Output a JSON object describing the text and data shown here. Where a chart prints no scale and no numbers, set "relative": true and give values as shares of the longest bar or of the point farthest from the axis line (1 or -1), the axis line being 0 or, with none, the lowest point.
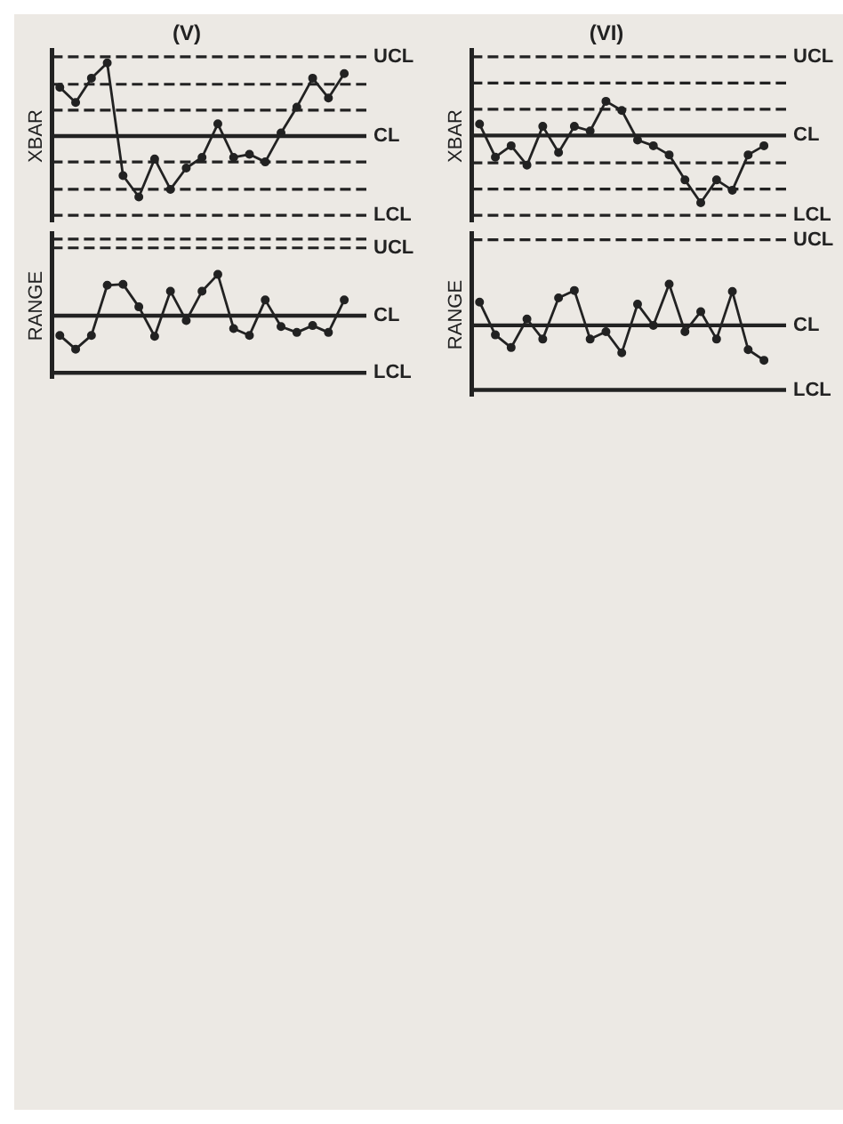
{
  "chart_data": [
    {
      "type": "line",
      "title": "(V)",
      "ylabel": "XBAR",
      "relative": true,
      "categories": [
        null,
        null,
        null,
        null,
        null,
        null,
        null,
        null,
        null,
        null,
        null,
        null,
        null,
        null,
        null,
        null,
        null,
        null,
        null
      ],
      "series": [
        {
          "color": "#222222",
          "values": [
            0.84,
            0.74,
            0.9,
            1.0,
            0.26,
            0.12,
            0.37,
            0.17,
            0.31,
            0.38,
            0.6,
            0.38,
            0.4,
            0.35,
            0.54,
            0.71,
            0.9,
            0.77,
            0.93
          ]
        }
      ],
      "ref_lines": [
        {
          "axis": "y",
          "value": 1.04,
          "label": "UCL",
          "line_style": "dashed",
          "color": "#222222"
        },
        {
          "axis": "y",
          "value": 0.86,
          "line_style": "dashed",
          "color": "#222222"
        },
        {
          "axis": "y",
          "value": 0.69,
          "line_style": "dashed",
          "color": "#222222"
        },
        {
          "axis": "y",
          "value": 0.52,
          "label": "CL",
          "line_style": "solid",
          "color": "#222222"
        },
        {
          "axis": "y",
          "value": 0.35,
          "line_style": "dashed",
          "color": "#222222"
        },
        {
          "axis": "y",
          "value": 0.17,
          "line_style": "dashed",
          "color": "#222222"
        },
        {
          "axis": "y",
          "value": 0,
          "label": "LCL",
          "line_style": "dashed",
          "color": "#222222"
        }
      ],
      "marker": "circle",
      "grid": false,
      "legend": false
    },
    {
      "type": "line",
      "title": "(VI)",
      "ylabel": "XBAR",
      "relative": true,
      "categories": [
        null,
        null,
        null,
        null,
        null,
        null,
        null,
        null,
        null,
        null,
        null,
        null,
        null,
        null,
        null,
        null,
        null,
        null,
        null
      ],
      "series": [
        {
          "color": "#222222",
          "values": [
            0.8,
            0.51,
            0.61,
            0.44,
            0.78,
            0.55,
            0.78,
            0.74,
            1.0,
            0.92,
            0.66,
            0.61,
            0.53,
            0.31,
            0.11,
            0.31,
            0.22,
            0.53,
            0.61
          ]
        }
      ],
      "ref_lines": [
        {
          "axis": "y",
          "value": 1.39,
          "label": "UCL",
          "line_style": "dashed",
          "color": "#222222"
        },
        {
          "axis": "y",
          "value": 1.16,
          "line_style": "dashed",
          "color": "#222222"
        },
        {
          "axis": "y",
          "value": 0.93,
          "line_style": "dashed",
          "color": "#222222"
        },
        {
          "axis": "y",
          "value": 0.7,
          "label": "CL",
          "line_style": "solid",
          "color": "#222222"
        },
        {
          "axis": "y",
          "value": 0.46,
          "line_style": "dashed",
          "color": "#222222"
        },
        {
          "axis": "y",
          "value": 0.23,
          "line_style": "dashed",
          "color": "#222222"
        },
        {
          "axis": "y",
          "value": 0,
          "label": "LCL",
          "line_style": "dashed",
          "color": "#222222"
        }
      ],
      "marker": "circle",
      "grid": false,
      "legend": false
    },
    {
      "type": "line",
      "ylabel": "RANGE",
      "relative": true,
      "categories": [
        null,
        null,
        null,
        null,
        null,
        null,
        null,
        null,
        null,
        null,
        null,
        null,
        null,
        null,
        null,
        null,
        null,
        null,
        null
      ],
      "series": [
        {
          "color": "#222222",
          "values": [
            0.38,
            0.24,
            0.38,
            0.89,
            0.9,
            0.67,
            0.37,
            0.83,
            0.53,
            0.83,
            1.0,
            0.45,
            0.38,
            0.74,
            0.47,
            0.41,
            0.48,
            0.41,
            0.74
          ]
        }
      ],
      "ref_lines": [
        {
          "axis": "y",
          "value": 1.36,
          "line_style": "dashed",
          "color": "#222222"
        },
        {
          "axis": "y",
          "value": 1.27,
          "label": "UCL",
          "line_style": "dashed",
          "color": "#222222"
        },
        {
          "axis": "y",
          "value": 0.58,
          "label": "CL",
          "line_style": "solid",
          "color": "#222222"
        },
        {
          "axis": "y",
          "value": 0,
          "label": "LCL",
          "line_style": "solid",
          "color": "#222222"
        }
      ],
      "marker": "circle",
      "grid": false,
      "legend": false
    },
    {
      "type": "line",
      "ylabel": "RANGE",
      "relative": true,
      "categories": [
        null,
        null,
        null,
        null,
        null,
        null,
        null,
        null,
        null,
        null,
        null,
        null,
        null,
        null,
        null,
        null,
        null,
        null,
        null
      ],
      "series": [
        {
          "color": "#222222",
          "values": [
            0.83,
            0.52,
            0.4,
            0.67,
            0.48,
            0.87,
            0.94,
            0.48,
            0.55,
            0.35,
            0.81,
            0.61,
            1.0,
            0.55,
            0.74,
            0.48,
            0.93,
            0.38,
            0.28
          ]
        }
      ],
      "ref_lines": [
        {
          "axis": "y",
          "value": 1.42,
          "label": "UCL",
          "line_style": "dashed",
          "color": "#222222"
        },
        {
          "axis": "y",
          "value": 0.61,
          "label": "CL",
          "line_style": "solid",
          "color": "#222222"
        },
        {
          "axis": "y",
          "value": 0,
          "label": "LCL",
          "line_style": "solid",
          "color": "#222222"
        }
      ],
      "marker": "circle",
      "grid": false,
      "legend": false
    }
  ]
}
